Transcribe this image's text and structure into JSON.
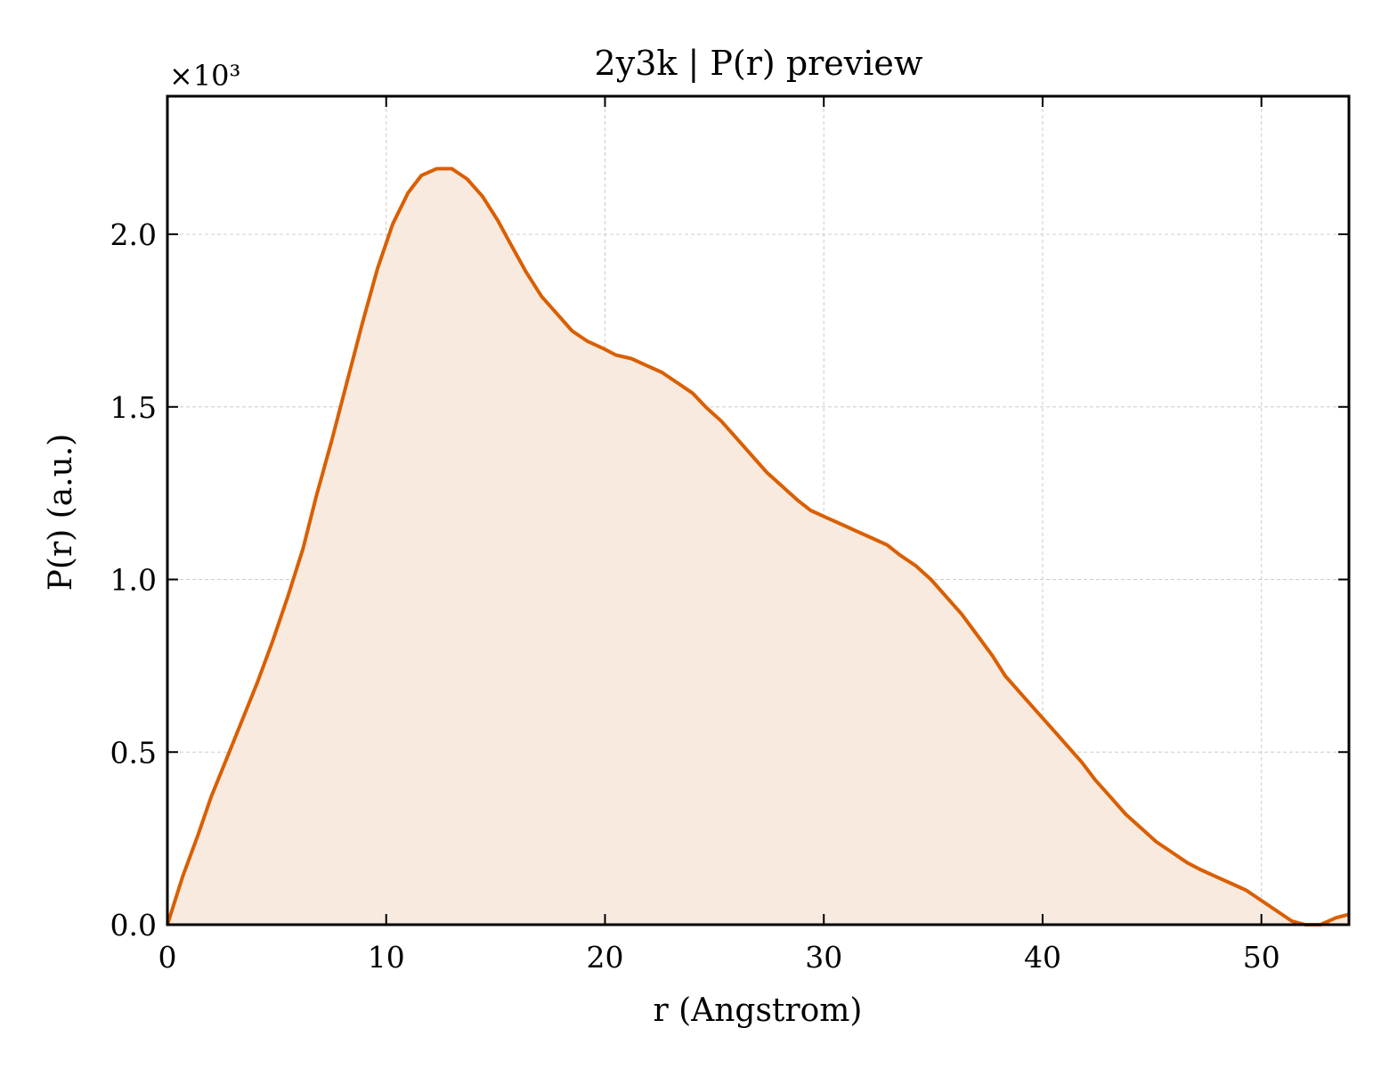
{
  "chart_data": {
    "type": "area",
    "title": "2y3k | P(r) preview",
    "xlabel": "r (Angstrom)",
    "ylabel": "P(r) (a.u.)",
    "y_multiplier_label": "×10³",
    "xlim": [
      0,
      54
    ],
    "ylim": [
      0,
      2.4
    ],
    "xticks": [
      0,
      10,
      20,
      30,
      40,
      50
    ],
    "xtick_labels": [
      "0",
      "10",
      "20",
      "30",
      "40",
      "50"
    ],
    "yticks": [
      0,
      0.5,
      1.0,
      1.5,
      2.0
    ],
    "ytick_labels": [
      "0.0",
      "0.5",
      "1.0",
      "1.5",
      "2.0"
    ],
    "grid": true,
    "legend": "none",
    "line_color": "#d95f02",
    "fill_color": "#f9eadf",
    "series": [
      {
        "x": [
          0,
          0.7,
          1.4,
          2.0,
          2.7,
          3.4,
          4.1,
          4.8,
          5.5,
          6.2,
          6.8,
          7.5,
          8.2,
          8.9,
          9.6,
          10.3,
          11.0,
          11.6,
          12.3,
          13.0,
          13.7,
          14.4,
          15.1,
          15.7,
          16.4,
          17.1,
          17.8,
          18.5,
          19.2,
          19.9,
          20.5,
          21.2,
          21.9,
          22.6,
          23.3,
          24.0,
          24.6,
          25.3,
          26.0,
          26.7,
          27.4,
          28.1,
          28.8,
          29.4,
          30.1,
          30.8,
          31.5,
          32.2,
          32.9,
          33.5,
          34.2,
          34.9,
          35.6,
          36.3,
          37.0,
          37.7,
          38.3,
          39.0,
          39.7,
          40.4,
          41.1,
          41.8,
          42.4,
          43.1,
          43.8,
          44.5,
          45.2,
          45.9,
          46.6,
          47.2,
          47.9,
          48.6,
          49.3,
          50.0,
          50.7,
          51.4,
          52.0,
          52.7,
          53.4,
          54.0
        ],
        "y": [
          0.0,
          0.14,
          0.26,
          0.37,
          0.48,
          0.59,
          0.7,
          0.82,
          0.95,
          1.09,
          1.24,
          1.4,
          1.57,
          1.74,
          1.9,
          2.03,
          2.12,
          2.17,
          2.19,
          2.19,
          2.16,
          2.11,
          2.04,
          1.97,
          1.89,
          1.82,
          1.77,
          1.72,
          1.69,
          1.67,
          1.65,
          1.64,
          1.62,
          1.6,
          1.57,
          1.54,
          1.5,
          1.46,
          1.41,
          1.36,
          1.31,
          1.27,
          1.23,
          1.2,
          1.18,
          1.16,
          1.14,
          1.12,
          1.1,
          1.07,
          1.04,
          1.0,
          0.95,
          0.9,
          0.84,
          0.78,
          0.72,
          0.67,
          0.62,
          0.57,
          0.52,
          0.47,
          0.42,
          0.37,
          0.32,
          0.28,
          0.24,
          0.21,
          0.18,
          0.16,
          0.14,
          0.12,
          0.1,
          0.07,
          0.04,
          0.01,
          0.0,
          0.0,
          0.02,
          0.03
        ]
      }
    ]
  }
}
